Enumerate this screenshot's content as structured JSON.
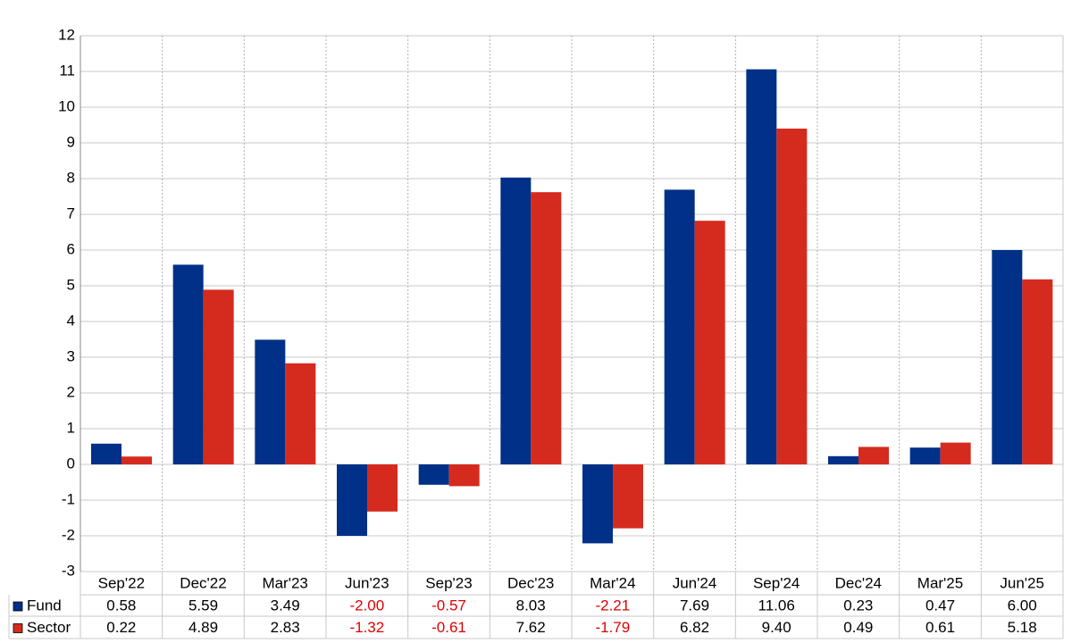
{
  "chart_data": {
    "type": "bar",
    "categories": [
      "Sep'22",
      "Dec'22",
      "Mar'23",
      "Jun'23",
      "Sep'23",
      "Dec'23",
      "Mar'24",
      "Jun'24",
      "Sep'24",
      "Dec'24",
      "Mar'25",
      "Jun'25"
    ],
    "series": [
      {
        "name": "Fund",
        "color": "#003087",
        "values": [
          0.58,
          5.59,
          3.49,
          -2.0,
          -0.57,
          8.03,
          -2.21,
          7.69,
          11.06,
          0.23,
          0.47,
          6.0
        ],
        "value_labels": [
          "0.58",
          "5.59",
          "3.49",
          "-2.00",
          "-0.57",
          "8.03",
          "-2.21",
          "7.69",
          "11.06",
          "0.23",
          "0.47",
          "6.00"
        ]
      },
      {
        "name": "Sector",
        "color": "#d52b1e",
        "values": [
          0.22,
          4.89,
          2.83,
          -1.32,
          -0.61,
          7.62,
          -1.79,
          6.82,
          9.4,
          0.49,
          0.61,
          5.18
        ],
        "value_labels": [
          "0.22",
          "4.89",
          "2.83",
          "-1.32",
          "-0.61",
          "7.62",
          "-1.79",
          "6.82",
          "9.40",
          "0.49",
          "0.61",
          "5.18"
        ]
      }
    ],
    "ylim": [
      -3,
      12
    ],
    "yticks": [
      -3,
      -2,
      -1,
      0,
      1,
      2,
      3,
      4,
      5,
      6,
      7,
      8,
      9,
      10,
      11,
      12
    ],
    "grid": true,
    "negative_label_color": "#e00000"
  }
}
